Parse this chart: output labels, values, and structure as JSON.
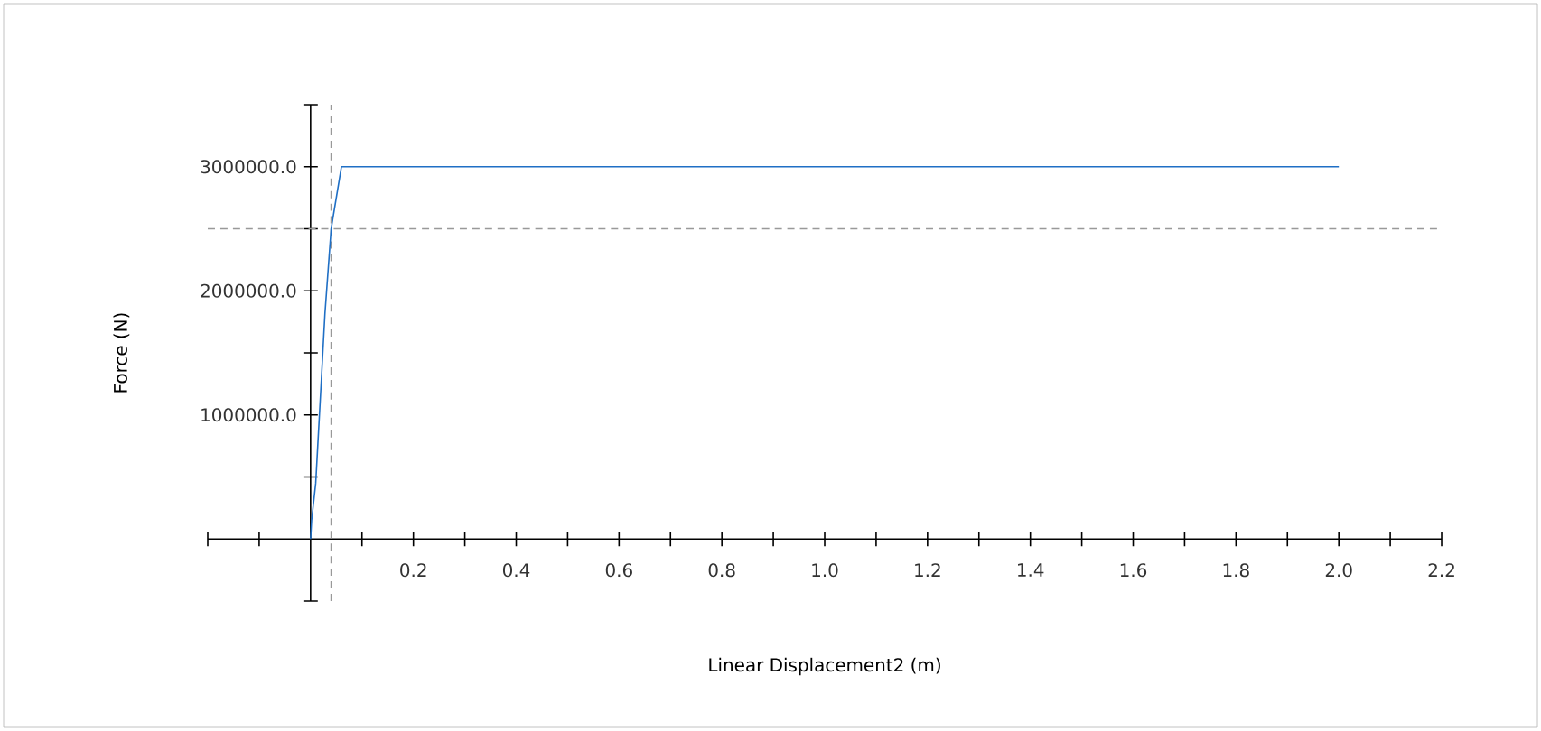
{
  "chart_data": {
    "type": "line",
    "xlabel": "Linear Displacement2 (m)",
    "ylabel": "Force (N)",
    "x": [
      0,
      0.002,
      0.01,
      0.028,
      0.04,
      0.06,
      2.0
    ],
    "series": [
      {
        "color": "#1f6fc5",
        "values": [
          0,
          150000,
          450000,
          1820000,
          2500000,
          3000000,
          3000000
        ]
      }
    ],
    "xlim": [
      -0.2,
      2.2
    ],
    "ylim": [
      -500000,
      3500000
    ],
    "xticks": [
      {
        "value": -0.2,
        "label": null
      },
      {
        "value": -0.1,
        "label": null
      },
      {
        "value": 0.1,
        "label": null
      },
      {
        "value": 0.2,
        "label": "0.2"
      },
      {
        "value": 0.3,
        "label": null
      },
      {
        "value": 0.4,
        "label": "0.4"
      },
      {
        "value": 0.5,
        "label": null
      },
      {
        "value": 0.6,
        "label": "0.6"
      },
      {
        "value": 0.7,
        "label": null
      },
      {
        "value": 0.8,
        "label": "0.8"
      },
      {
        "value": 0.9,
        "label": null
      },
      {
        "value": 1.0,
        "label": "1.0"
      },
      {
        "value": 1.1,
        "label": null
      },
      {
        "value": 1.2,
        "label": "1.2"
      },
      {
        "value": 1.3,
        "label": null
      },
      {
        "value": 1.4,
        "label": "1.4"
      },
      {
        "value": 1.5,
        "label": null
      },
      {
        "value": 1.6,
        "label": "1.6"
      },
      {
        "value": 1.7,
        "label": null
      },
      {
        "value": 1.8,
        "label": "1.8"
      },
      {
        "value": 1.9,
        "label": null
      },
      {
        "value": 2.0,
        "label": "2.0"
      },
      {
        "value": 2.1,
        "label": null
      },
      {
        "value": 2.2,
        "label": "2.2"
      }
    ],
    "yticks": [
      {
        "value": -500000,
        "label": null
      },
      {
        "value": 500000,
        "label": null
      },
      {
        "value": 1000000,
        "label": "1000000.0"
      },
      {
        "value": 1500000,
        "label": null
      },
      {
        "value": 2000000,
        "label": "2000000.0"
      },
      {
        "value": 2500000,
        "label": null
      },
      {
        "value": 3000000,
        "label": "3000000.0"
      },
      {
        "value": 3500000,
        "label": null
      }
    ],
    "ref_lines": [
      {
        "axis": "x",
        "value": 0.04,
        "color": "#999999",
        "line_style": "dashed"
      },
      {
        "axis": "y",
        "value": 2500000,
        "color": "#999999",
        "line_style": "dashed"
      }
    ],
    "grid": false,
    "marker": "none",
    "line_style": "solid"
  }
}
